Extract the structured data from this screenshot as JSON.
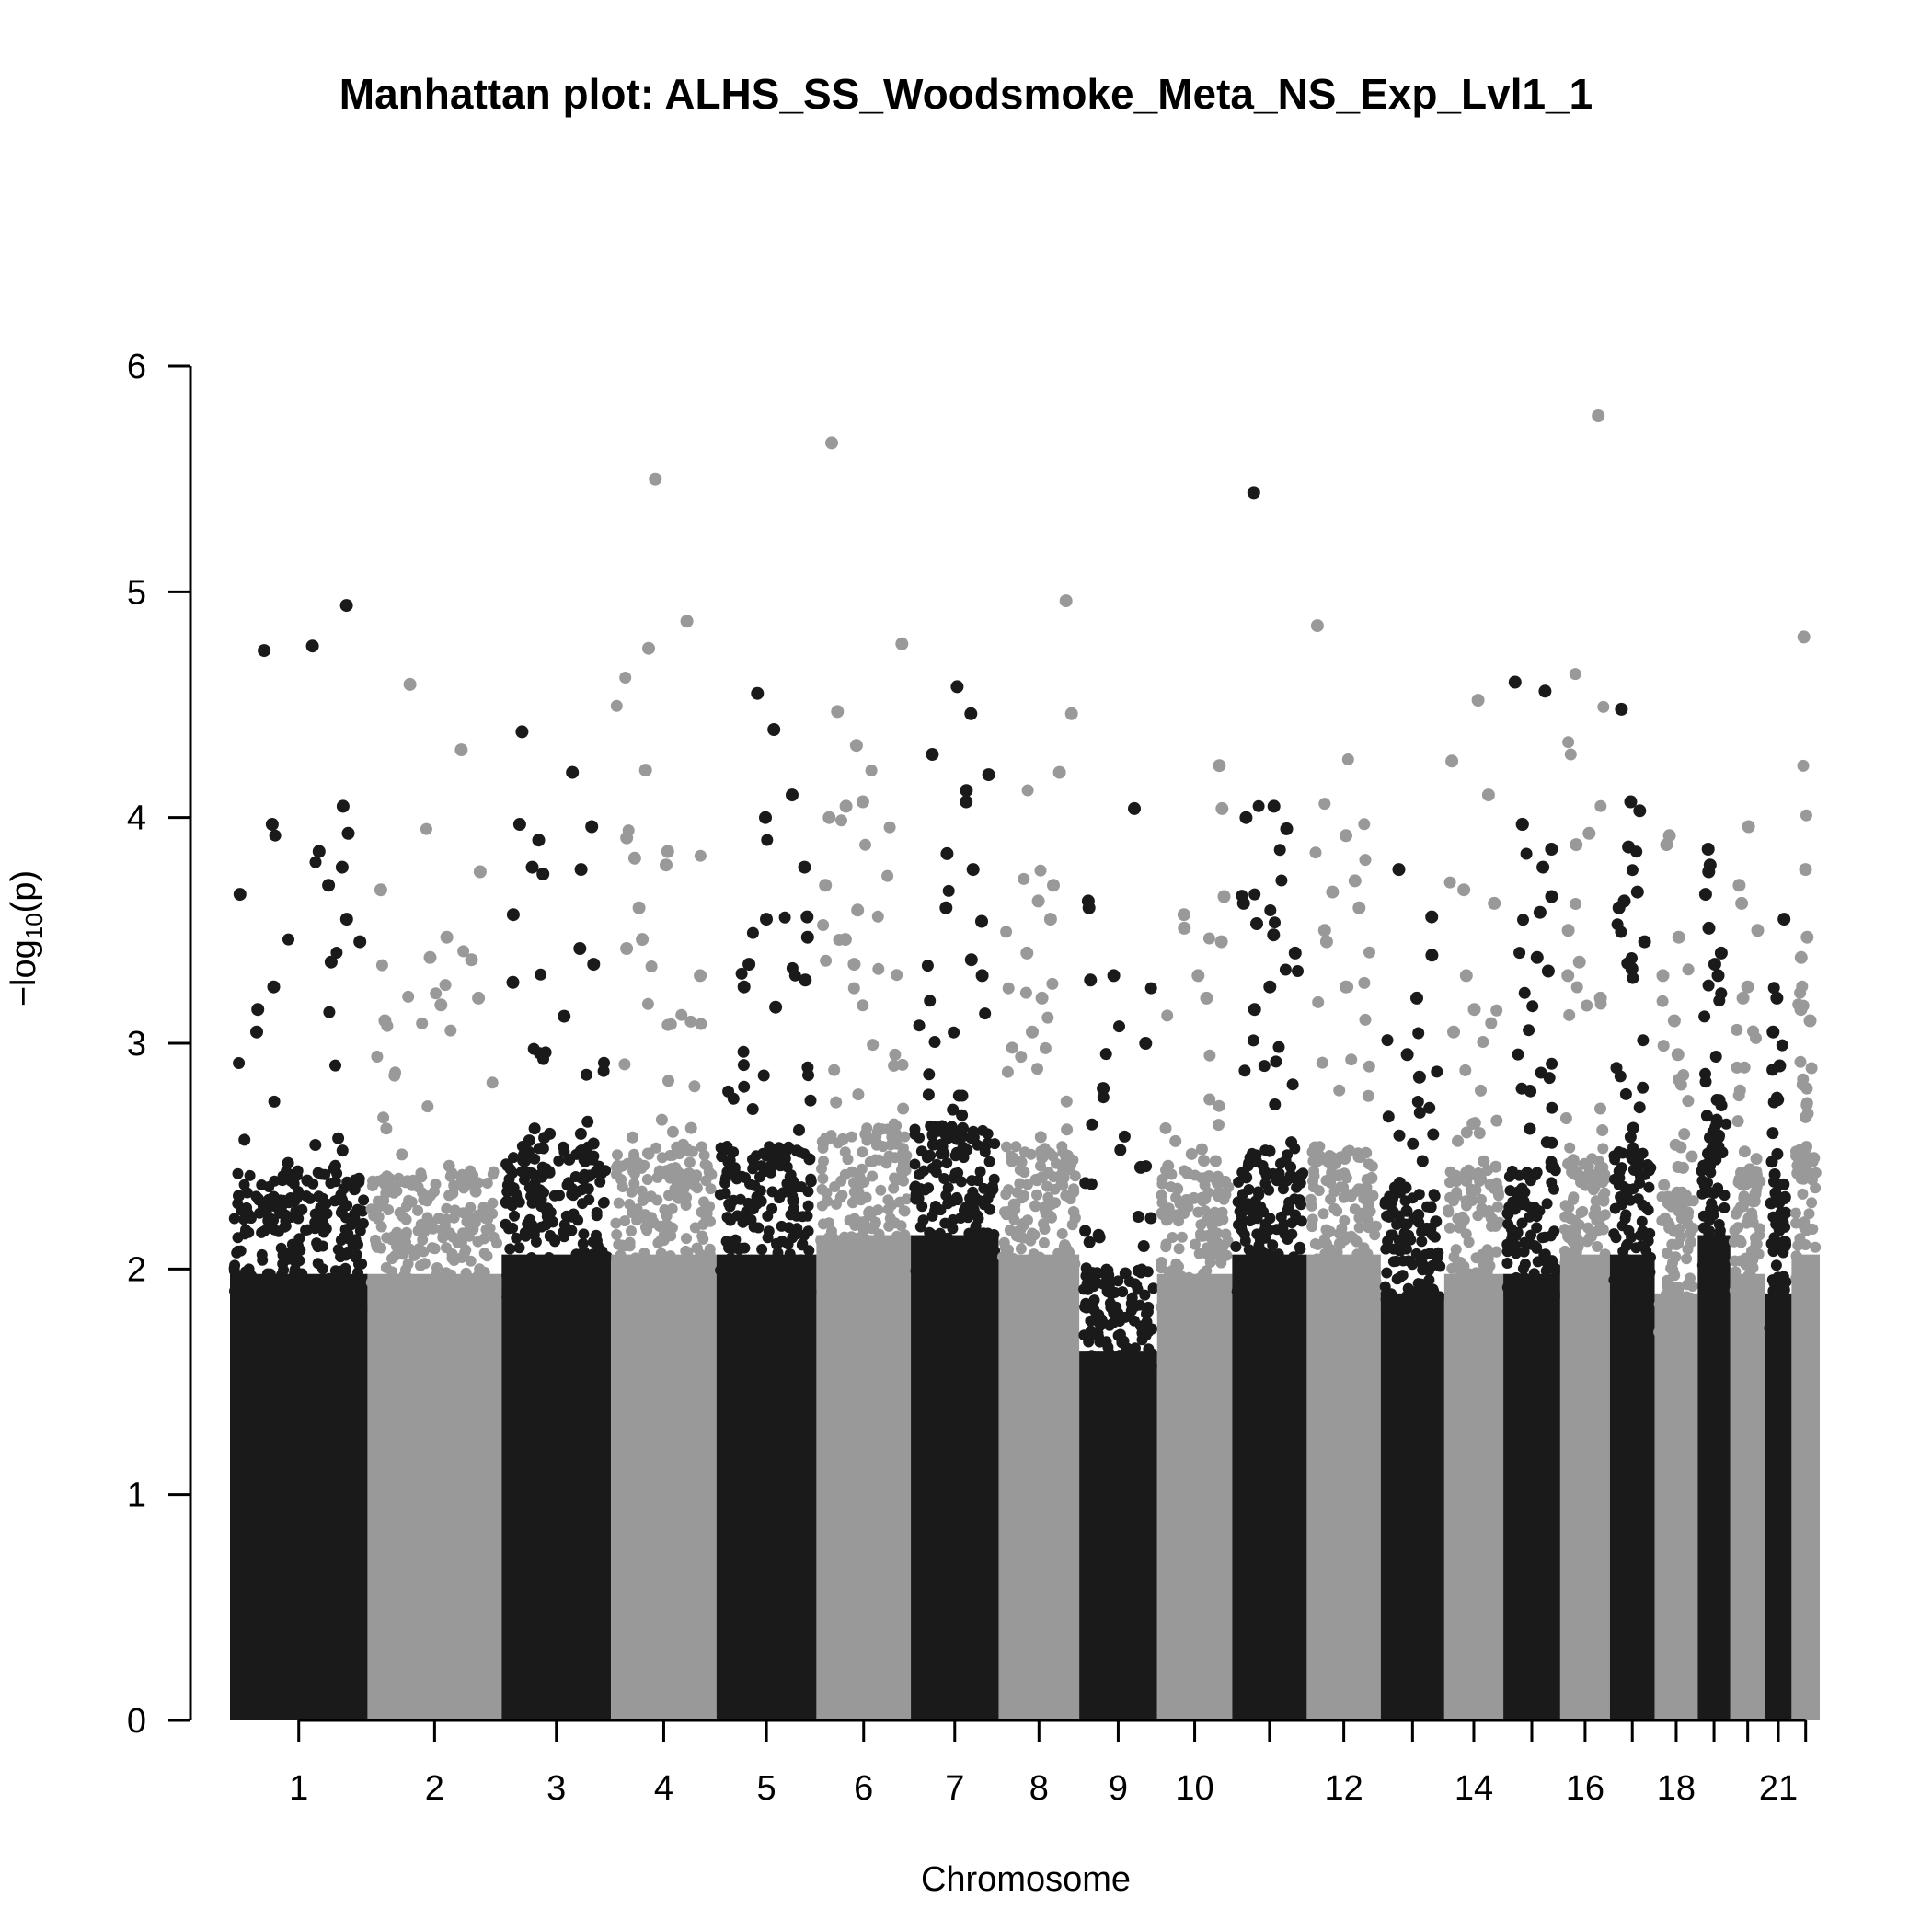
{
  "chart_data": {
    "type": "scatter",
    "title": "Manhattan plot: ALHS_SS_Woodsmoke_Meta_NS_Exp_Lvl1_1",
    "xlabel": "Chromosome",
    "ylabel": "−log10(p)",
    "ylabel_parts": {
      "prefix": "−log",
      "subscript": "10",
      "body": "(p)"
    },
    "ylim": [
      0,
      6
    ],
    "yticks": [
      "0",
      "1",
      "2",
      "3",
      "4",
      "5",
      "6"
    ],
    "x_tick_labels": [
      "1",
      "2",
      "3",
      "4",
      "5",
      "6",
      "7",
      "8",
      "9",
      "10",
      "12",
      "14",
      "16",
      "18",
      "21"
    ],
    "colors": {
      "odd": "#1a1a1a",
      "even": "#999999"
    },
    "chromosomes": [
      {
        "chr": 1,
        "dense_top": 2.3,
        "peaks": [
          4.94,
          4.76,
          4.74,
          4.05,
          3.97,
          3.93,
          3.85,
          3.78,
          3.7,
          3.66,
          3.55,
          3.45,
          3.36,
          3.25,
          3.15,
          3.05
        ]
      },
      {
        "chr": 2,
        "dense_top": 2.3,
        "peaks": [
          4.59,
          4.3,
          3.76,
          3.68,
          3.47,
          3.38,
          3.37,
          3.2,
          3.17,
          3.1
        ]
      },
      {
        "chr": 3,
        "dense_top": 2.4,
        "peaks": [
          4.38,
          4.2,
          3.97,
          3.96,
          3.9,
          3.78,
          3.77,
          3.75,
          3.57,
          3.42,
          3.35,
          3.27,
          3.12
        ]
      },
      {
        "chr": 4,
        "dense_top": 2.4,
        "peaks": [
          5.5,
          4.87,
          4.75,
          4.21,
          3.91,
          3.85,
          3.82,
          3.79,
          3.6,
          3.46,
          3.42,
          3.3
        ]
      },
      {
        "chr": 5,
        "dense_top": 2.4,
        "peaks": [
          4.55,
          4.39,
          4.1,
          4.0,
          3.78,
          3.56,
          3.55,
          3.47,
          3.35,
          3.28,
          3.25,
          3.16
        ]
      },
      {
        "chr": 6,
        "dense_top": 2.5,
        "peaks": [
          5.66,
          4.77,
          4.47,
          4.32,
          4.07,
          4.05,
          4.0,
          3.7,
          3.59,
          3.46,
          3.35
        ]
      },
      {
        "chr": 7,
        "dense_top": 2.5,
        "peaks": [
          4.58,
          4.46,
          4.28,
          4.19,
          4.12,
          4.07,
          3.84,
          3.77,
          3.6,
          3.54,
          3.37,
          3.3
        ]
      },
      {
        "chr": 8,
        "dense_top": 2.4,
        "peaks": [
          4.96,
          4.46,
          4.2,
          3.7,
          3.63,
          3.55,
          3.4,
          3.2,
          3.05
        ]
      },
      {
        "chr": 9,
        "dense_top": 1.9,
        "peaks": [
          4.04,
          3.63,
          3.6,
          3.3,
          3.28,
          3.0,
          2.8,
          2.45
        ]
      },
      {
        "chr": 10,
        "dense_top": 2.3,
        "peaks": [
          4.23,
          4.04,
          3.65,
          3.57,
          3.51,
          3.45,
          3.3,
          3.2
        ]
      },
      {
        "chr": 11,
        "dense_top": 2.4,
        "peaks": [
          5.44,
          4.05,
          4.0,
          3.95,
          3.62,
          3.53,
          3.48,
          3.4,
          3.25,
          3.15
        ]
      },
      {
        "chr": 12,
        "dense_top": 2.4,
        "peaks": [
          4.85,
          3.92,
          3.72,
          3.67,
          3.6,
          3.5,
          3.45,
          3.25
        ]
      },
      {
        "chr": 13,
        "dense_top": 2.2,
        "peaks": [
          3.77,
          3.56,
          3.39,
          3.2,
          2.95,
          2.85
        ]
      },
      {
        "chr": 14,
        "dense_top": 2.3,
        "peaks": [
          4.52,
          4.25,
          4.1,
          3.68,
          3.62,
          3.3,
          3.15,
          3.05
        ]
      },
      {
        "chr": 15,
        "dense_top": 2.3,
        "peaks": [
          4.6,
          4.56,
          3.97,
          3.97,
          3.86,
          3.78,
          3.65,
          3.58,
          3.38,
          3.32
        ]
      },
      {
        "chr": 16,
        "dense_top": 2.4,
        "peaks": [
          5.78,
          3.93,
          3.88,
          3.5,
          3.36,
          3.3,
          3.2
        ]
      },
      {
        "chr": 17,
        "dense_top": 2.4,
        "peaks": [
          4.48,
          4.07,
          4.03,
          3.87,
          3.67,
          3.63,
          3.6,
          3.45,
          3.33
        ]
      },
      {
        "chr": 18,
        "dense_top": 2.2,
        "peaks": [
          3.92,
          3.88,
          3.47,
          3.3,
          3.1,
          2.95
        ]
      },
      {
        "chr": 19,
        "dense_top": 2.5,
        "peaks": [
          3.86,
          3.79,
          3.76,
          3.66,
          3.51,
          3.4,
          3.35,
          3.3
        ]
      },
      {
        "chr": 20,
        "dense_top": 2.3,
        "peaks": [
          3.96,
          3.7,
          3.62,
          3.5,
          3.25,
          3.2
        ]
      },
      {
        "chr": 21,
        "dense_top": 2.2,
        "peaks": [
          3.55,
          3.2,
          3.05,
          2.9,
          2.75
        ]
      },
      {
        "chr": 22,
        "dense_top": 2.4,
        "peaks": [
          4.8,
          3.77,
          3.47,
          3.38,
          3.15,
          3.1
        ]
      }
    ]
  }
}
